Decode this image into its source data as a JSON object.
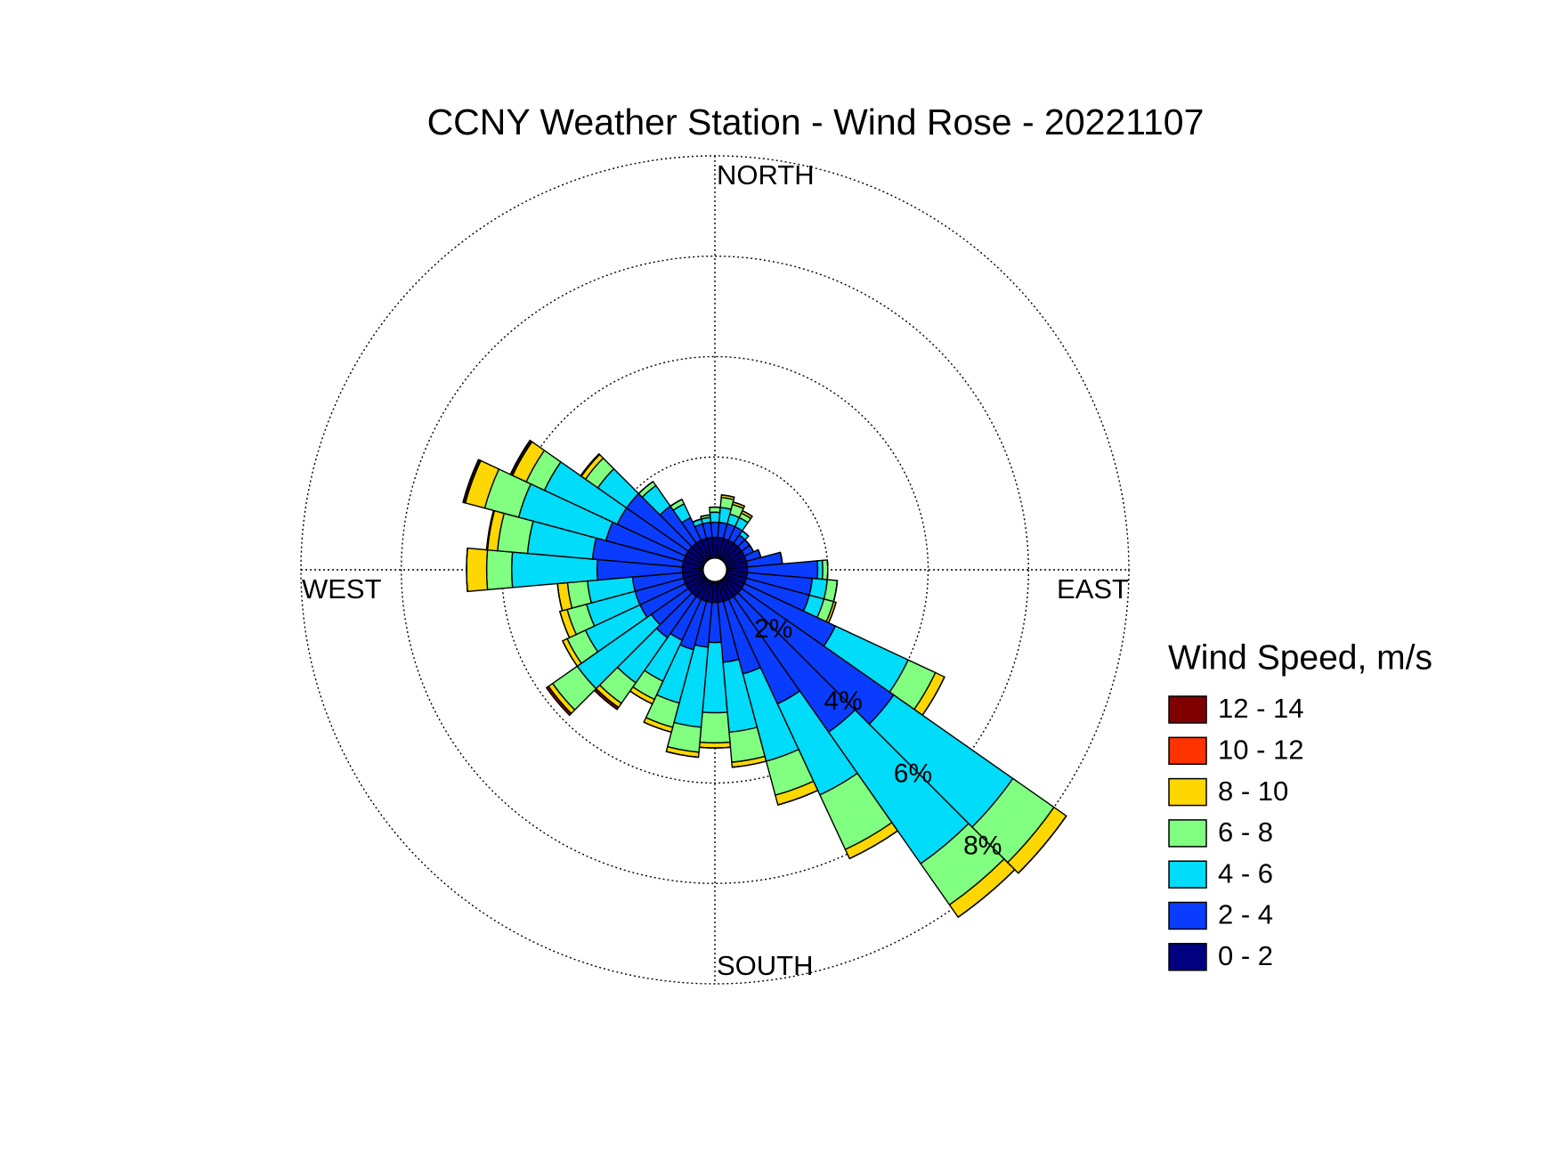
{
  "chart_data": {
    "type": "windrose",
    "title": "CCNY Weather Station - Wind Rose - 20221107",
    "direction_labels": {
      "north": "NORTH",
      "east": "EAST",
      "south": "SOUTH",
      "west": "WEST"
    },
    "legend_title": "Wind Speed, m/s",
    "legend_position": "right",
    "x": [
      0,
      10,
      20,
      30,
      40,
      50,
      60,
      70,
      80,
      90,
      100,
      110,
      120,
      130,
      140,
      150,
      160,
      170,
      180,
      190,
      200,
      210,
      220,
      230,
      240,
      250,
      260,
      270,
      280,
      290,
      300,
      310,
      320,
      330,
      340,
      350
    ],
    "rlim": [
      0,
      8
    ],
    "rticks": [
      {
        "value": 2,
        "label": "2%"
      },
      {
        "value": 4,
        "label": "4%"
      },
      {
        "value": 6,
        "label": "6%"
      },
      {
        "value": 8,
        "label": "8%"
      }
    ],
    "grid": true,
    "series": [
      {
        "name": "0 - 2",
        "color": "#000080",
        "values": [
          0.4,
          0.4,
          0.4,
          0.4,
          0.4,
          0.4,
          0.4,
          0.4,
          0.4,
          0.4,
          0.4,
          0.4,
          0.4,
          0.4,
          0.4,
          0.4,
          0.4,
          0.4,
          0.4,
          0.4,
          0.4,
          0.4,
          0.4,
          0.4,
          0.4,
          0.4,
          0.4,
          0.4,
          0.4,
          0.4,
          0.4,
          0.4,
          0.4,
          0.4,
          0.4,
          0.4
        ]
      },
      {
        "name": "2 - 4",
        "color": "#0a3cff",
        "values": [
          0.3,
          0.3,
          0.3,
          0.3,
          0.2,
          0.2,
          0.2,
          0.3,
          0.7,
          1.4,
          1.3,
          1.3,
          2.0,
          3.7,
          3.3,
          2.3,
          1.5,
          1.2,
          0.8,
          0.9,
          1.0,
          0.9,
          1.0,
          0.9,
          1.0,
          1.0,
          1.0,
          1.7,
          1.8,
          1.6,
          1.5,
          1.5,
          0.9,
          0.5,
          0.3,
          0.3
        ]
      },
      {
        "name": "4 - 6",
        "color": "#00dcfa",
        "values": [
          0.2,
          0.3,
          0.2,
          0.2,
          0.1,
          0,
          0,
          0,
          0,
          0.1,
          0.3,
          0.3,
          1.6,
          2.9,
          3.2,
          2.0,
          1.8,
          1.4,
          1.4,
          1.6,
          1.1,
          0.9,
          1.1,
          1.8,
          1.2,
          1.0,
          0.9,
          1.7,
          1.3,
          1.8,
          1.6,
          0.7,
          0.5,
          0.3,
          0.1,
          0.1
        ]
      },
      {
        "name": "6 - 8",
        "color": "#80ff80",
        "values": [
          0.1,
          0.2,
          0.2,
          0.1,
          0,
          0,
          0,
          0,
          0,
          0.1,
          0.2,
          0.2,
          0.6,
          1.0,
          1.0,
          1.2,
          0.7,
          0.6,
          0.6,
          0.5,
          0.5,
          0.4,
          0.5,
          0.6,
          0.4,
          0.4,
          0.4,
          0.5,
          0.6,
          0.7,
          0.4,
          0.3,
          0.1,
          0.1,
          0,
          0.05
        ]
      },
      {
        "name": "8 - 10",
        "color": "#ffd700",
        "values": [
          0,
          0.05,
          0.05,
          0.05,
          0,
          0,
          0,
          0,
          0,
          0,
          0,
          0.05,
          0.2,
          0.3,
          0.3,
          0.2,
          0.2,
          0.1,
          0.1,
          0.1,
          0.1,
          0.1,
          0.1,
          0.1,
          0.1,
          0.15,
          0.2,
          0.4,
          0.2,
          0.4,
          0.3,
          0.1,
          0,
          0,
          0,
          0
        ]
      },
      {
        "name": "10 - 12",
        "color": "#ff3300",
        "values": [
          0,
          0,
          0,
          0,
          0,
          0,
          0,
          0,
          0,
          0,
          0,
          0,
          0,
          0,
          0,
          0,
          0,
          0,
          0,
          0,
          0,
          0,
          0,
          0,
          0,
          0,
          0,
          0,
          0,
          0.02,
          0.02,
          0,
          0,
          0,
          0,
          0
        ]
      },
      {
        "name": "12 - 14",
        "color": "#800000",
        "values": [
          0,
          0,
          0,
          0,
          0,
          0,
          0,
          0,
          0,
          0,
          0,
          0,
          0,
          0,
          0,
          0,
          0,
          0,
          0,
          0,
          0,
          0,
          0.05,
          0.05,
          0,
          0,
          0,
          0,
          0.02,
          0.03,
          0.03,
          0.02,
          0,
          0,
          0,
          0
        ]
      }
    ]
  }
}
